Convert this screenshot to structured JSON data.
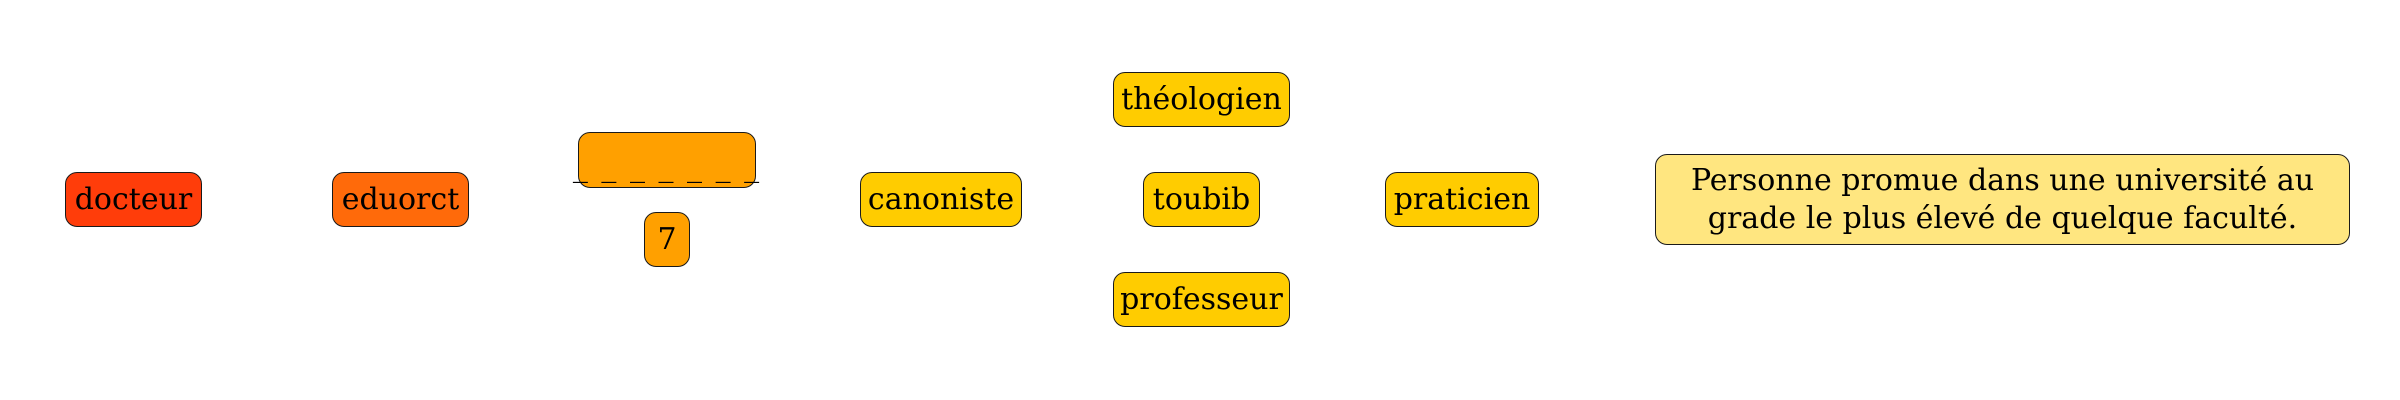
{
  "nodes": {
    "word": {
      "label": "docteur",
      "color": "#ff3d0a"
    },
    "anagram": {
      "label": "eduorct",
      "color": "#ff6a0a"
    },
    "blank": {
      "label": "_ _ _ _ _ _ _",
      "color": "#ffa000"
    },
    "length": {
      "label": "7",
      "color": "#ffa000"
    },
    "syn_canoniste": {
      "label": "canoniste",
      "color": "#ffcc00"
    },
    "syn_theologien": {
      "label": "théologien",
      "color": "#ffcc00"
    },
    "syn_toubib": {
      "label": "toubib",
      "color": "#ffcc00"
    },
    "syn_professeur": {
      "label": "professeur",
      "color": "#ffcc00"
    },
    "syn_praticien": {
      "label": "praticien",
      "color": "#ffcc00"
    },
    "definition": {
      "label": "Personne promue dans une université au grade le plus élevé de quelque faculté.",
      "color": "#ffe680"
    }
  }
}
